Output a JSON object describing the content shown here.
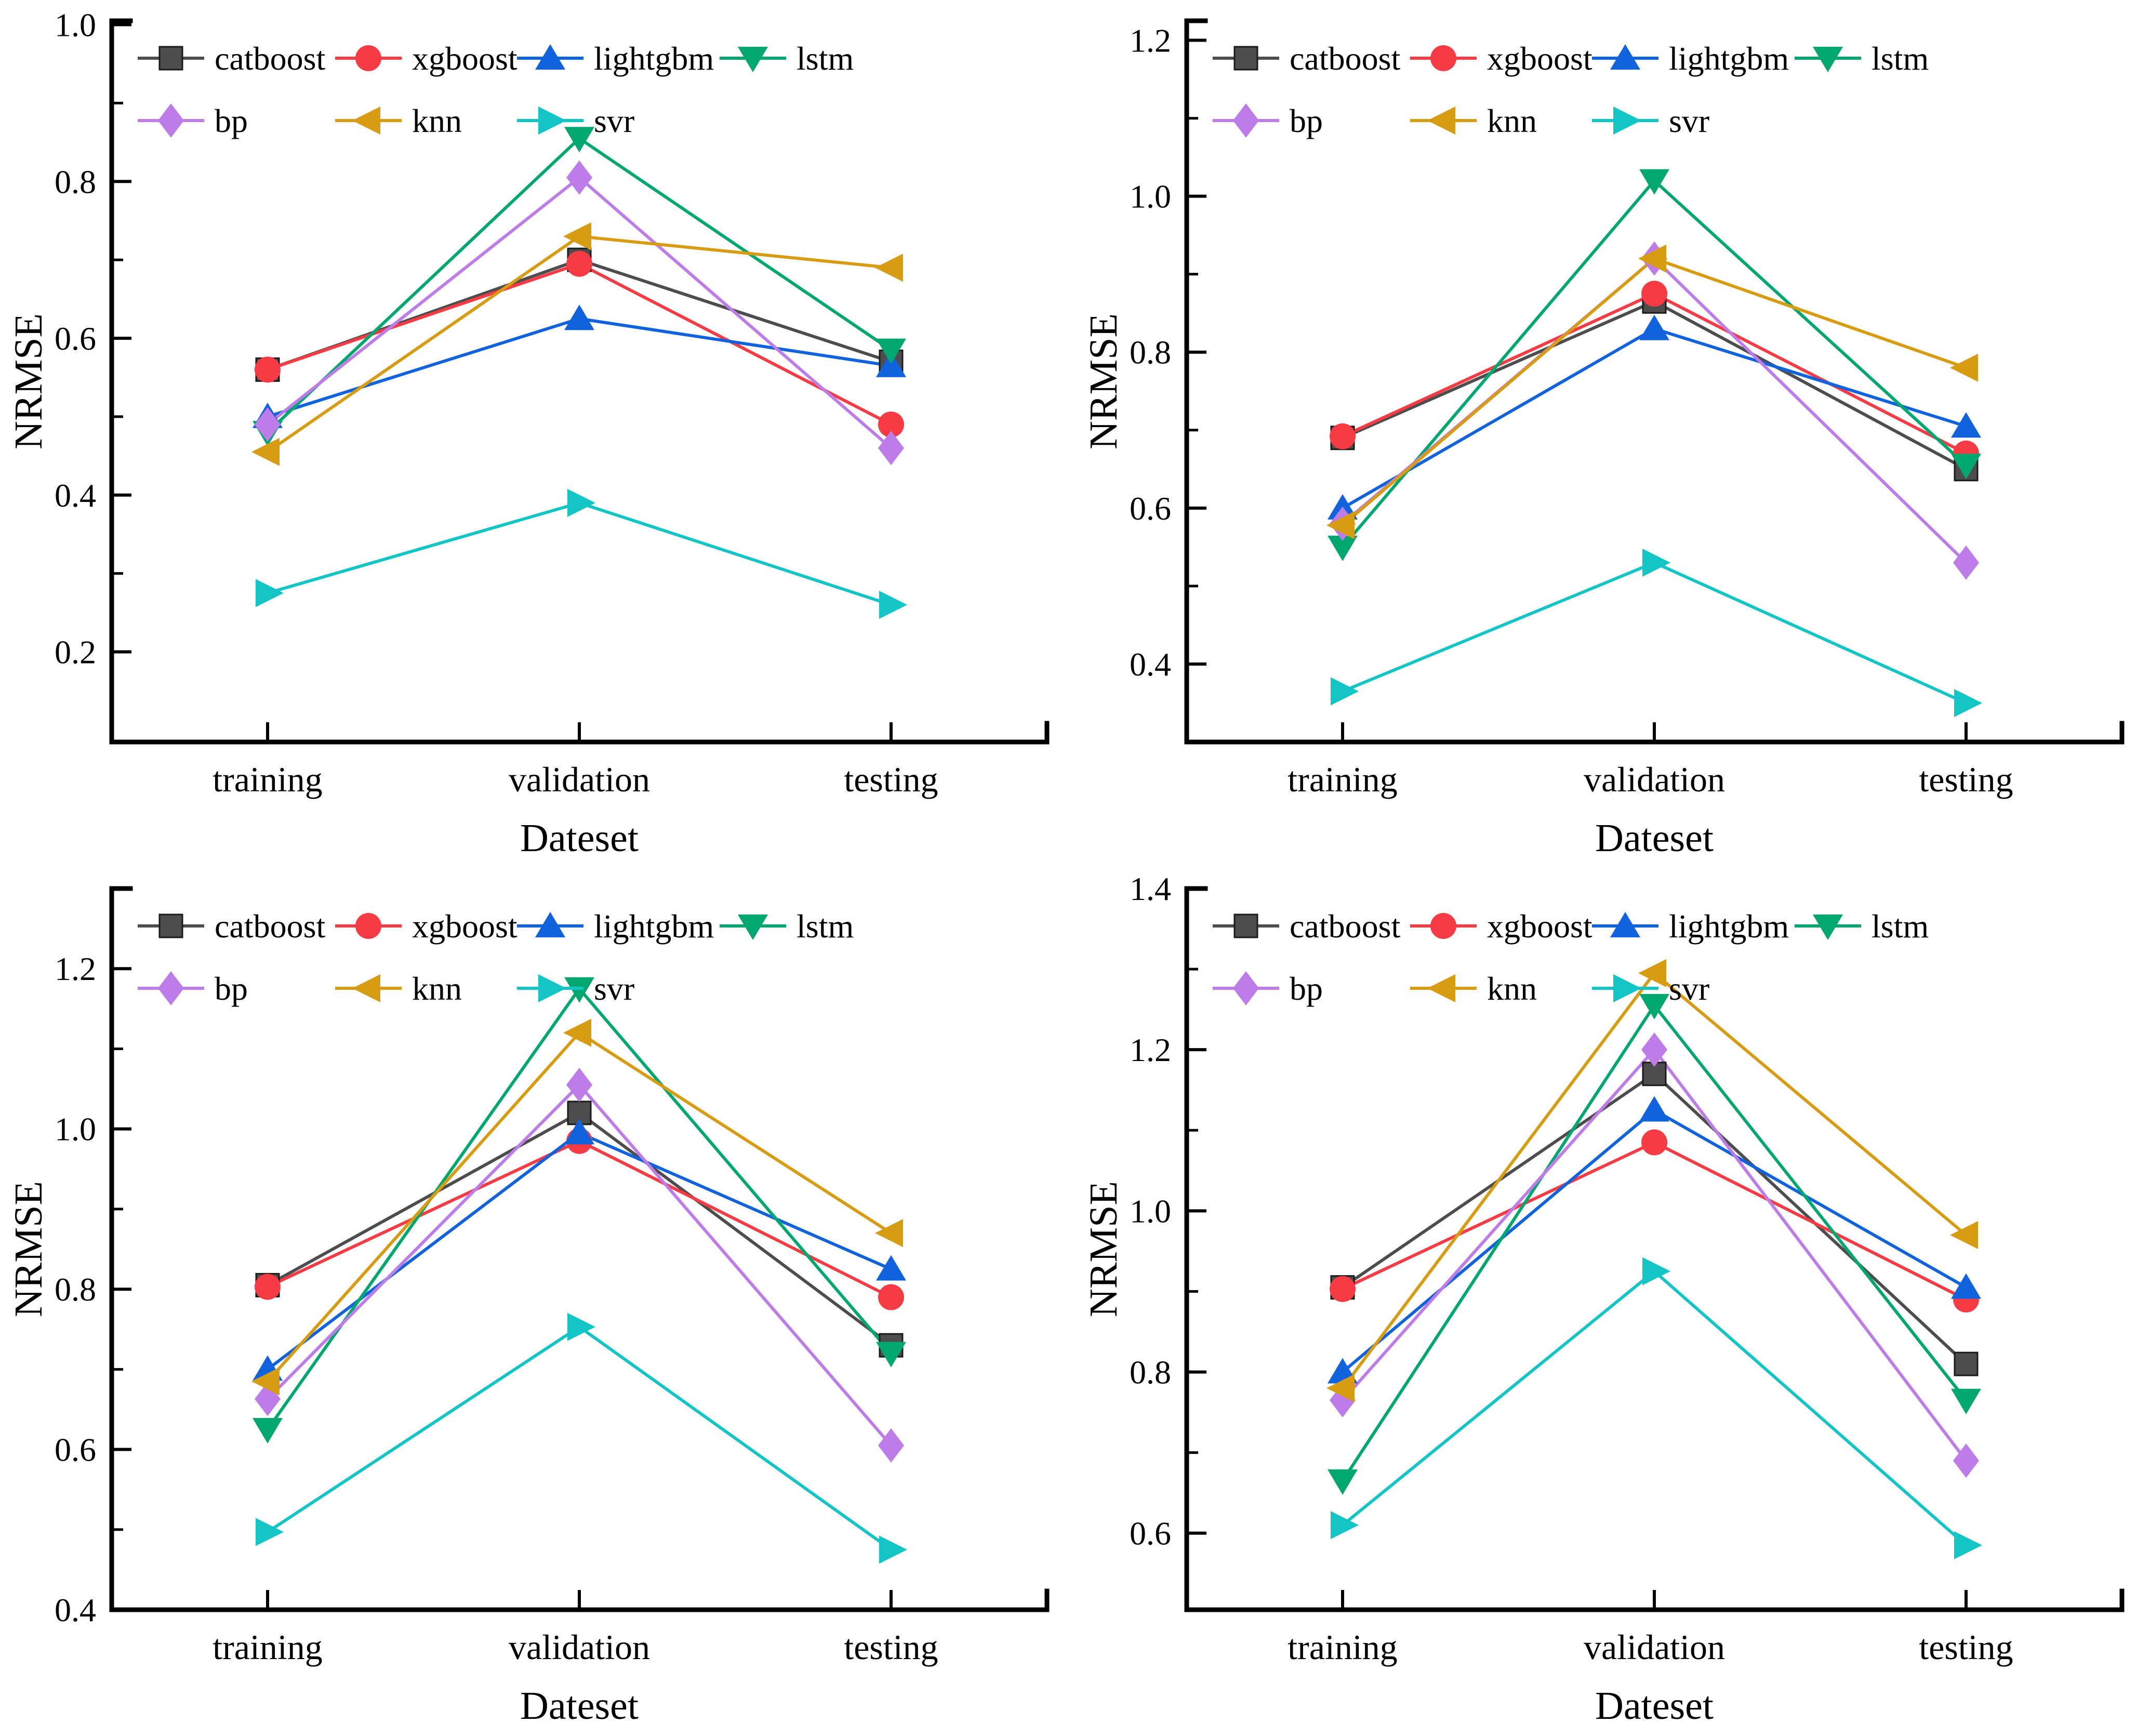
{
  "figure": {
    "background": "#ffffff",
    "text_color": "#000000",
    "ylabel": "NRMSE",
    "xlabel": "Dateset",
    "categories": [
      "training",
      "validation",
      "testing"
    ],
    "legend_rows": [
      [
        "catboost",
        "xgboost",
        "lightgbm",
        "lstm"
      ],
      [
        "bp",
        "knn",
        "svr"
      ]
    ]
  },
  "chart_data": [
    {
      "type": "line",
      "position": "top-left",
      "title": "",
      "xlabel": "Dateset",
      "ylabel": "NRMSE",
      "categories": [
        "training",
        "validation",
        "testing"
      ],
      "yticks": [
        0.2,
        0.4,
        0.6,
        0.8,
        1.0
      ],
      "ylim": [
        0.085,
        1.005
      ],
      "grid": false,
      "legend_position": "top-inside",
      "series": [
        {
          "name": "catboost",
          "color": "#4d4d4d",
          "marker": "square",
          "values": [
            0.56,
            0.7,
            0.57
          ]
        },
        {
          "name": "xgboost",
          "color": "#f63b44",
          "marker": "circle",
          "values": [
            0.56,
            0.695,
            0.49
          ]
        },
        {
          "name": "lightgbm",
          "color": "#1163dd",
          "marker": "triangle-up",
          "values": [
            0.5,
            0.625,
            0.565
          ]
        },
        {
          "name": "lstm",
          "color": "#00a870",
          "marker": "triangle-down",
          "values": [
            0.48,
            0.855,
            0.585
          ]
        },
        {
          "name": "bp",
          "color": "#bd7ce8",
          "marker": "diamond",
          "values": [
            0.49,
            0.805,
            0.46
          ]
        },
        {
          "name": "knn",
          "color": "#d79c11",
          "marker": "triangle-left",
          "values": [
            0.455,
            0.73,
            0.69
          ]
        },
        {
          "name": "svr",
          "color": "#14c5c6",
          "marker": "triangle-right",
          "values": [
            0.275,
            0.39,
            0.26
          ]
        }
      ]
    },
    {
      "type": "line",
      "position": "top-right",
      "title": "",
      "xlabel": "Dateset",
      "ylabel": "NRMSE",
      "categories": [
        "training",
        "validation",
        "testing"
      ],
      "yticks": [
        0.4,
        0.6,
        0.8,
        1.0,
        1.2
      ],
      "ylim": [
        0.3,
        1.225
      ],
      "grid": false,
      "legend_position": "top-inside",
      "series": [
        {
          "name": "catboost",
          "color": "#4d4d4d",
          "marker": "square",
          "values": [
            0.69,
            0.865,
            0.65
          ]
        },
        {
          "name": "xgboost",
          "color": "#f63b44",
          "marker": "circle",
          "values": [
            0.692,
            0.875,
            0.67
          ]
        },
        {
          "name": "lightgbm",
          "color": "#1163dd",
          "marker": "triangle-up",
          "values": [
            0.6,
            0.83,
            0.705
          ]
        },
        {
          "name": "lstm",
          "color": "#00a870",
          "marker": "triangle-down",
          "values": [
            0.55,
            1.02,
            0.655
          ]
        },
        {
          "name": "bp",
          "color": "#bd7ce8",
          "marker": "diamond",
          "values": [
            0.58,
            0.92,
            0.53
          ]
        },
        {
          "name": "knn",
          "color": "#d79c11",
          "marker": "triangle-left",
          "values": [
            0.578,
            0.92,
            0.78
          ]
        },
        {
          "name": "svr",
          "color": "#14c5c6",
          "marker": "triangle-right",
          "values": [
            0.365,
            0.53,
            0.35
          ]
        }
      ]
    },
    {
      "type": "line",
      "position": "bottom-left",
      "title": "",
      "xlabel": "Dateset",
      "ylabel": "NRMSE",
      "categories": [
        "training",
        "validation",
        "testing"
      ],
      "yticks": [
        0.4,
        0.6,
        0.8,
        1.0,
        1.2
      ],
      "ylim": [
        0.4,
        1.3
      ],
      "grid": false,
      "legend_position": "top-inside",
      "series": [
        {
          "name": "catboost",
          "color": "#4d4d4d",
          "marker": "square",
          "values": [
            0.805,
            1.02,
            0.73
          ]
        },
        {
          "name": "xgboost",
          "color": "#f63b44",
          "marker": "circle",
          "values": [
            0.803,
            0.985,
            0.79
          ]
        },
        {
          "name": "lightgbm",
          "color": "#1163dd",
          "marker": "triangle-up",
          "values": [
            0.7,
            0.995,
            0.825
          ]
        },
        {
          "name": "lstm",
          "color": "#00a870",
          "marker": "triangle-down",
          "values": [
            0.625,
            1.175,
            0.72
          ]
        },
        {
          "name": "bp",
          "color": "#bd7ce8",
          "marker": "diamond",
          "values": [
            0.663,
            1.055,
            0.605
          ]
        },
        {
          "name": "knn",
          "color": "#d79c11",
          "marker": "triangle-left",
          "values": [
            0.685,
            1.12,
            0.87
          ]
        },
        {
          "name": "svr",
          "color": "#14c5c6",
          "marker": "triangle-right",
          "values": [
            0.497,
            0.753,
            0.475
          ]
        }
      ]
    },
    {
      "type": "line",
      "position": "bottom-right",
      "title": "",
      "xlabel": "Dateset",
      "ylabel": "NRMSE",
      "categories": [
        "training",
        "validation",
        "testing"
      ],
      "yticks": [
        0.6,
        0.8,
        1.0,
        1.2,
        1.4
      ],
      "ylim": [
        0.505,
        1.4
      ],
      "grid": false,
      "legend_position": "top-inside",
      "series": [
        {
          "name": "catboost",
          "color": "#4d4d4d",
          "marker": "square",
          "values": [
            0.905,
            1.17,
            0.81
          ]
        },
        {
          "name": "xgboost",
          "color": "#f63b44",
          "marker": "circle",
          "values": [
            0.903,
            1.085,
            0.89
          ]
        },
        {
          "name": "lightgbm",
          "color": "#1163dd",
          "marker": "triangle-up",
          "values": [
            0.8,
            1.125,
            0.905
          ]
        },
        {
          "name": "lstm",
          "color": "#00a870",
          "marker": "triangle-down",
          "values": [
            0.665,
            1.255,
            0.765
          ]
        },
        {
          "name": "bp",
          "color": "#bd7ce8",
          "marker": "diamond",
          "values": [
            0.765,
            1.2,
            0.69
          ]
        },
        {
          "name": "knn",
          "color": "#d79c11",
          "marker": "triangle-left",
          "values": [
            0.78,
            1.295,
            0.97
          ]
        },
        {
          "name": "svr",
          "color": "#14c5c6",
          "marker": "triangle-right",
          "values": [
            0.61,
            0.925,
            0.585
          ]
        }
      ]
    }
  ]
}
